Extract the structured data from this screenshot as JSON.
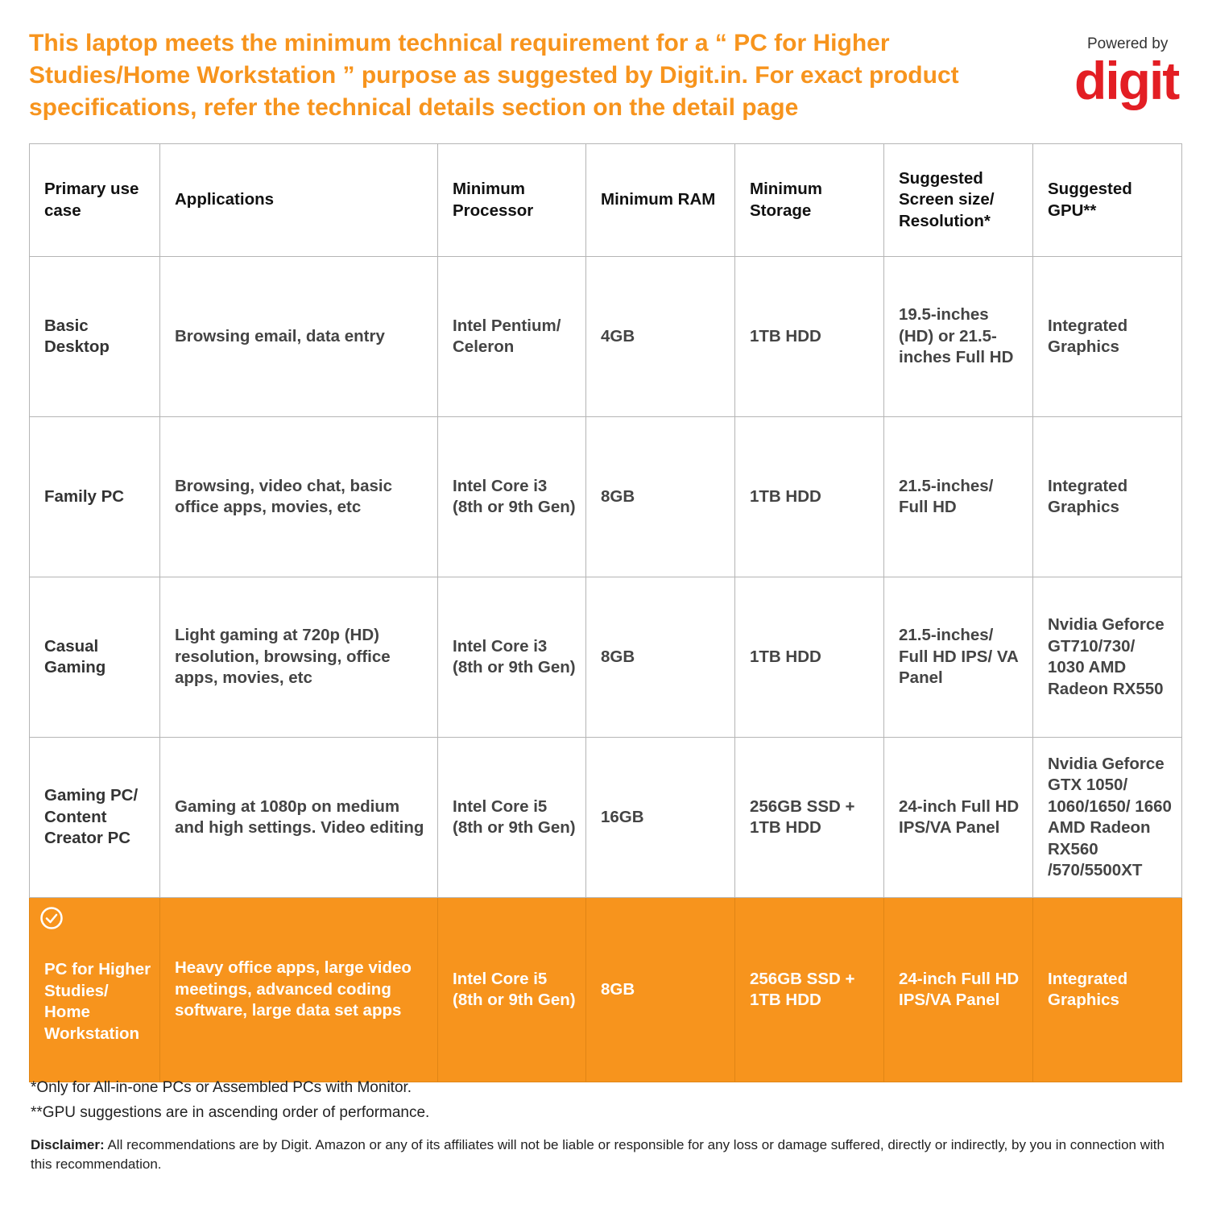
{
  "header": {
    "title": "This laptop meets the minimum technical requirement for a “ PC for Higher Studies/Home Workstation ” purpose as suggested by Digit.in. For exact product specifications, refer the technical details section on the detail page",
    "powered_by": "Powered by",
    "brand": "digit"
  },
  "table": {
    "columns": [
      "Primary use case",
      "Applications",
      "Minimum Processor",
      "Minimum RAM",
      "Minimum Storage",
      "Suggested Screen size/ Resolution*",
      "Suggested GPU**"
    ],
    "rows": [
      [
        "Basic Desktop",
        "Browsing email, data entry",
        "Intel Pentium/ Celeron",
        "4GB",
        "1TB HDD",
        "19.5-inches (HD) or 21.5-inches Full HD",
        "Integrated Graphics"
      ],
      [
        "Family PC",
        "Browsing, video chat, basic office apps, movies, etc",
        "Intel Core i3 (8th or 9th Gen)",
        "8GB",
        "1TB HDD",
        "21.5-inches/ Full HD",
        "Integrated Graphics"
      ],
      [
        "Casual Gaming",
        "Light gaming at 720p (HD) resolution, browsing, office apps, movies, etc",
        "Intel Core i3 (8th or 9th Gen)",
        "8GB",
        "1TB HDD",
        "21.5-inches/ Full HD IPS/ VA Panel",
        "Nvidia Geforce GT710/730/ 1030 AMD Radeon RX550"
      ],
      [
        "Gaming PC/ Content Creator PC",
        "Gaming at 1080p on medium and high settings. Video editing",
        "Intel Core i5 (8th or 9th Gen)",
        "16GB",
        "256GB SSD + 1TB HDD",
        "24-inch Full HD IPS/VA Panel",
        "Nvidia Geforce GTX 1050/ 1060/1650/ 1660 AMD Radeon RX560 /570/5500XT"
      ],
      [
        "PC for Higher Studies/ Home Workstation",
        "Heavy office apps, large video meetings, advanced coding software, large data set apps",
        "Intel Core i5 (8th or 9th Gen)",
        "8GB",
        "256GB SSD + 1TB HDD",
        "24-inch Full HD IPS/VA Panel",
        "Integrated Graphics"
      ]
    ]
  },
  "footnotes": [
    "*Only for All-in-one PCs or Assembled PCs with Monitor.",
    "**GPU suggestions are in ascending order of performance."
  ],
  "disclaimer": {
    "label": "Disclaimer:",
    "text": "All recommendations are by Digit. Amazon or any of its affiliates will not be liable or responsible for any loss or damage suffered, directly or indirectly, by you in connection with this recommendation."
  }
}
